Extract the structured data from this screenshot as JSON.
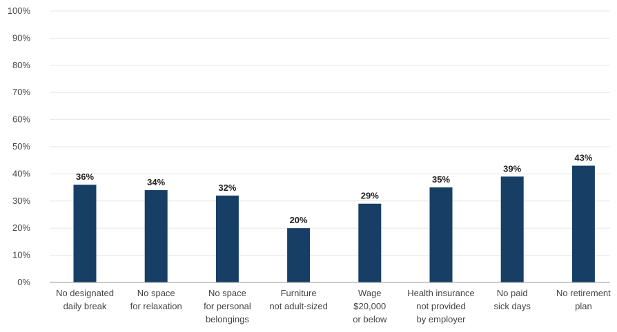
{
  "chart_data": {
    "type": "bar",
    "categories": [
      [
        "No designated",
        "daily break"
      ],
      [
        "No space",
        "for relaxation"
      ],
      [
        "No space",
        "for personal",
        "belongings"
      ],
      [
        "Furniture",
        "not adult-sized"
      ],
      [
        "Wage",
        "$20,000",
        "or below"
      ],
      [
        "Health insurance",
        "not provided",
        "by employer"
      ],
      [
        "No paid",
        "sick days"
      ],
      [
        "No retirement",
        "plan"
      ]
    ],
    "values": [
      36,
      34,
      32,
      20,
      29,
      35,
      39,
      43
    ],
    "data_labels": [
      "36%",
      "34%",
      "32%",
      "20%",
      "29%",
      "35%",
      "39%",
      "43%"
    ],
    "title": "",
    "xlabel": "",
    "ylabel": "",
    "ylim": [
      0,
      100
    ],
    "y_ticks": [
      0,
      10,
      20,
      30,
      40,
      50,
      60,
      70,
      80,
      90,
      100
    ],
    "y_tick_labels": [
      "0%",
      "10%",
      "20%",
      "30%",
      "40%",
      "50%",
      "60%",
      "70%",
      "80%",
      "90%",
      "100%"
    ],
    "grid": true,
    "legend": "none",
    "bar_color": "#173f66",
    "grid_color": "#e6e6e6",
    "axis_color": "#9a9a9a"
  }
}
